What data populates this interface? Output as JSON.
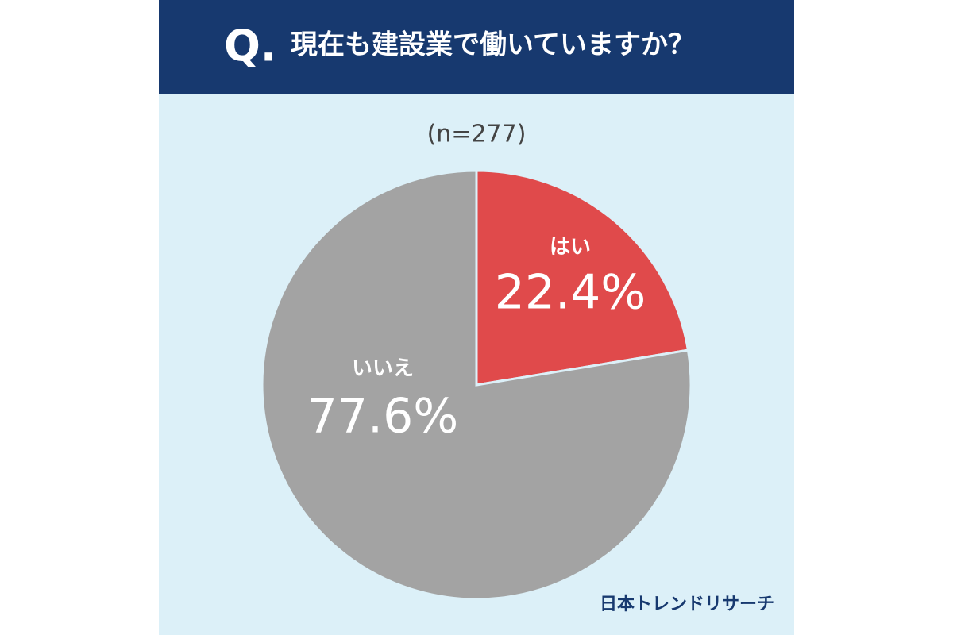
{
  "chart_data": {
    "type": "pie",
    "question_prefix": "Q.",
    "title": "現在も建設業で働いていますか？",
    "subtitle": "(n=277)",
    "categories": [
      "はい",
      "いいえ"
    ],
    "values": [
      22.4,
      77.6
    ],
    "value_labels": [
      "22.4%",
      "77.6%"
    ],
    "colors": [
      "#e04a4b",
      "#a3a3a3"
    ],
    "source": "日本トレンドリサーチ"
  }
}
